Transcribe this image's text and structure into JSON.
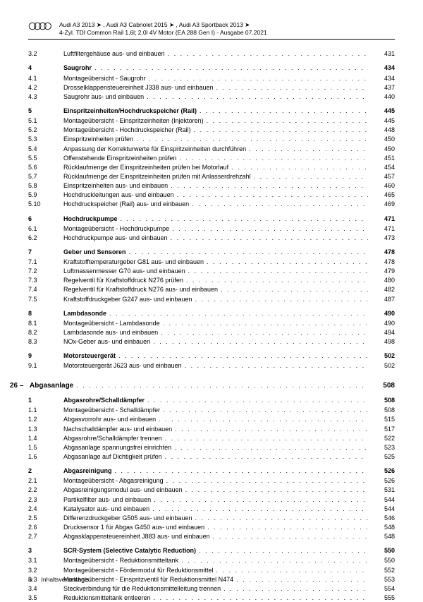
{
  "header": {
    "line1": "Audi A3 2013 ➤ , Audi A3 Cabriolet 2015 ➤ , Audi A3 Sportback 2013 ➤",
    "line2": "4-Zyl. TDI Common Rail 1,6l; 2,0l 4V Motor (EA 288 Gen I) - Ausgabe 07.2021"
  },
  "footer": {
    "pagenum": "iv",
    "label": "Inhaltsverzeichnis"
  },
  "toc": [
    {
      "type": "item",
      "num": "3.2",
      "title": "Luftfiltergehäuse aus- und einbauen",
      "page": "431"
    },
    {
      "type": "section",
      "num": "4",
      "title": "Saugrohr",
      "page": "434"
    },
    {
      "type": "item",
      "num": "4.1",
      "title": "Montageübersicht - Saugrohr",
      "page": "434"
    },
    {
      "type": "item",
      "num": "4.2",
      "title": "Drosselklappensteuereinheit J338 aus- und einbauen",
      "page": "437"
    },
    {
      "type": "item",
      "num": "4.3",
      "title": "Saugrohr aus- und einbauen",
      "page": "440"
    },
    {
      "type": "section",
      "num": "5",
      "title": "Einspritzeinheiten/Hochdruckspeicher (Rail)",
      "page": "445"
    },
    {
      "type": "item",
      "num": "5.1",
      "title": "Montageübersicht - Einspritzeinheiten (Injektoren)",
      "page": "445"
    },
    {
      "type": "item",
      "num": "5.2",
      "title": "Montageübersicht - Hochdruckspeicher (Rail)",
      "page": "448"
    },
    {
      "type": "item",
      "num": "5.3",
      "title": "Einspritzeinheiten prüfen",
      "page": "450"
    },
    {
      "type": "item",
      "num": "5.4",
      "title": "Anpassung der Korrekturwerte für Einspritzeinheiten durchführen",
      "page": "450"
    },
    {
      "type": "item",
      "num": "5.5",
      "title": "Offenstehende Einspritzeinheiten prüfen",
      "page": "451"
    },
    {
      "type": "item",
      "num": "5.6",
      "title": "Rücklaufmenge der Einspritzeinheiten prüfen bei Motorlauf",
      "page": "454"
    },
    {
      "type": "item",
      "num": "5.7",
      "title": "Rücklaufmenge der Einspritzeinheiten prüfen mit Anlasserdrehzahl",
      "page": "457"
    },
    {
      "type": "item",
      "num": "5.8",
      "title": "Einspritzeinheiten aus- und einbauen",
      "page": "460"
    },
    {
      "type": "item",
      "num": "5.9",
      "title": "Hochdruckleitungen aus- und einbauen",
      "page": "465"
    },
    {
      "type": "item",
      "num": "5.10",
      "title": "Hochdruckspeicher (Rail) aus- und einbauen",
      "page": "469"
    },
    {
      "type": "section",
      "num": "6",
      "title": "Hochdruckpumpe",
      "page": "471"
    },
    {
      "type": "item",
      "num": "6.1",
      "title": "Montageübersicht - Hochdruckpumpe",
      "page": "471"
    },
    {
      "type": "item",
      "num": "6.2",
      "title": "Hochdruckpumpe aus- und einbauen",
      "page": "473"
    },
    {
      "type": "section",
      "num": "7",
      "title": "Geber und Sensoren",
      "page": "478"
    },
    {
      "type": "item",
      "num": "7.1",
      "title": "Kraftstofftemperaturgeber G81 aus- und einbauen",
      "page": "478"
    },
    {
      "type": "item",
      "num": "7.2",
      "title": "Luftmassenmesser G70 aus- und einbauen",
      "page": "479"
    },
    {
      "type": "item",
      "num": "7.3",
      "title": "Regelventil für Kraftstoffdruck N276 prüfen",
      "page": "480"
    },
    {
      "type": "item",
      "num": "7.4",
      "title": "Regelventil für Kraftstoffdruck N276 aus- und einbauen",
      "page": "482"
    },
    {
      "type": "item",
      "num": "7.5",
      "title": "Kraftstoffdruckgeber G247 aus- und einbauen",
      "page": "487"
    },
    {
      "type": "section",
      "num": "8",
      "title": "Lambdasonde",
      "page": "490"
    },
    {
      "type": "item",
      "num": "8.1",
      "title": "Montageübersicht - Lambdasonde",
      "page": "490"
    },
    {
      "type": "item",
      "num": "8.2",
      "title": "Lambdasonde aus- und einbauen",
      "page": "494"
    },
    {
      "type": "item",
      "num": "8.3",
      "title": "NOx-Geber aus- und einbauen",
      "page": "498"
    },
    {
      "type": "section",
      "num": "9",
      "title": "Motorsteuergerät",
      "page": "502"
    },
    {
      "type": "item",
      "num": "9.1",
      "title": "Motorsteuergerät J623 aus- und einbauen",
      "page": "502"
    },
    {
      "type": "chapter",
      "num": "26 –",
      "title": "Abgasanlage",
      "page": "508"
    },
    {
      "type": "section",
      "num": "1",
      "title": "Abgasrohre/Schalldämpfer",
      "page": "508"
    },
    {
      "type": "item",
      "num": "1.1",
      "title": "Montageübersicht - Schalldämpfer",
      "page": "508"
    },
    {
      "type": "item",
      "num": "1.2",
      "title": "Abgasvorrohr aus- und einbauen",
      "page": "515"
    },
    {
      "type": "item",
      "num": "1.3",
      "title": "Nachschalldämpfer aus- und einbauen",
      "page": "517"
    },
    {
      "type": "item",
      "num": "1.4",
      "title": "Abgasrohre/Schalldämpfer trennen",
      "page": "522"
    },
    {
      "type": "item",
      "num": "1.5",
      "title": "Abgasanlage spannungsfrei einrichten",
      "page": "523"
    },
    {
      "type": "item",
      "num": "1.6",
      "title": "Abgasanlage auf Dichtigkeit prüfen",
      "page": "525"
    },
    {
      "type": "section",
      "num": "2",
      "title": "Abgasreinigung",
      "page": "526"
    },
    {
      "type": "item",
      "num": "2.1",
      "title": "Montageübersicht - Abgasreinigung",
      "page": "526"
    },
    {
      "type": "item",
      "num": "2.2",
      "title": "Abgasreinigungsmodul aus- und einbauen",
      "page": "531"
    },
    {
      "type": "item",
      "num": "2.3",
      "title": "Partikelfilter aus- und einbauen",
      "page": "544"
    },
    {
      "type": "item",
      "num": "2.4",
      "title": "Katalysator aus- und einbauen",
      "page": "544"
    },
    {
      "type": "item",
      "num": "2.5",
      "title": "Differenzdruckgeber G505 aus- und einbauen",
      "page": "546"
    },
    {
      "type": "item",
      "num": "2.6",
      "title": "Drucksensor 1 für Abgas G450 aus- und einbauen",
      "page": "548"
    },
    {
      "type": "item",
      "num": "2.7",
      "title": "Abgasklappensteuereinheit J883 aus- und einbauen",
      "page": "548"
    },
    {
      "type": "section",
      "num": "3",
      "title": "SCR-System (Selective Catalytic Reduction)",
      "page": "550"
    },
    {
      "type": "item",
      "num": "3.1",
      "title": "Montageübersicht - Reduktionsmitteltank",
      "page": "550"
    },
    {
      "type": "item",
      "num": "3.2",
      "title": "Montageübersicht - Fördermodul für Reduktionsmittel",
      "page": "552"
    },
    {
      "type": "item",
      "num": "3.3",
      "title": "Montageübersicht - Einspritzventil für Reduktionsmittel N474",
      "page": "553"
    },
    {
      "type": "item",
      "num": "3.4",
      "title": "Steckverbindung für die Reduktionsmittelleitung trennen",
      "page": "554"
    },
    {
      "type": "item",
      "num": "3.5",
      "title": "Reduktionsmitteltank entleeren",
      "page": "555"
    }
  ]
}
